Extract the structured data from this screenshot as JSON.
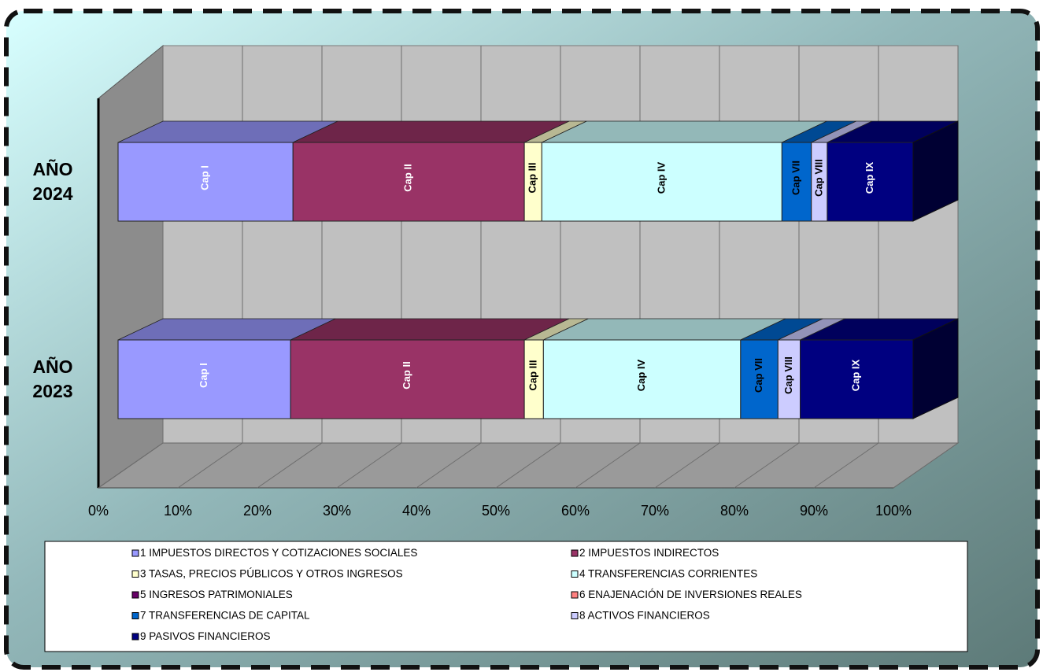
{
  "chart_data": {
    "type": "bar",
    "stacked": "percent",
    "orientation": "horizontal",
    "three_d": true,
    "categories": [
      "AÑO 2023",
      "AÑO 2024"
    ],
    "category_labels": [
      {
        "line1": "AÑO",
        "line2": "2023"
      },
      {
        "line1": "AÑO",
        "line2": "2024"
      }
    ],
    "series": [
      {
        "name": "1 IMPUESTOS DIRECTOS Y COTIZACIONES SOCIALES",
        "short": "Cap I",
        "color": "#9999FF",
        "label_color": "#ffffff",
        "values": [
          21.7,
          22.0
        ]
      },
      {
        "name": "2 IMPUESTOS INDIRECTOS",
        "short": "Cap II",
        "color": "#993366",
        "label_color": "#ffffff",
        "values": [
          29.4,
          29.1
        ]
      },
      {
        "name": "3 TASAS, PRECIOS PÚBLICOS Y OTROS INGRESOS",
        "short": "Cap III",
        "color": "#FFFFCC",
        "label_color": "#000000",
        "values": [
          2.4,
          2.2
        ]
      },
      {
        "name": "4 TRANSFERENCIAS CORRIENTES",
        "short": "Cap IV",
        "color": "#CCFFFF",
        "label_color": "#000000",
        "values": [
          24.8,
          30.2
        ]
      },
      {
        "name": "5 INGRESOS PATRIMONIALES",
        "short": "",
        "color": "#660066",
        "label_color": "#ffffff",
        "values": [
          0,
          0
        ]
      },
      {
        "name": "6 ENAJENACIÓN DE INVERSIONES REALES",
        "short": "",
        "color": "#FF8080",
        "label_color": "#000000",
        "values": [
          0,
          0
        ]
      },
      {
        "name": "7 TRANSFERENCIAS DE CAPITAL",
        "short": "Cap VII",
        "color": "#0066CC",
        "label_color": "#000000",
        "values": [
          4.7,
          3.7
        ]
      },
      {
        "name": "8 ACTIVOS FINANCIEROS",
        "short": "Cap VIII",
        "color": "#CCCCFF",
        "label_color": "#000000",
        "values": [
          2.8,
          2.0
        ]
      },
      {
        "name": "9 PASIVOS FINANCIEROS",
        "short": "Cap IX",
        "color": "#000080",
        "label_color": "#ffffff",
        "values": [
          14.2,
          10.8
        ]
      }
    ],
    "xlim": [
      0,
      100
    ],
    "xticks": [
      "0%",
      "10%",
      "20%",
      "30%",
      "40%",
      "50%",
      "60%",
      "70%",
      "80%",
      "90%",
      "100%"
    ],
    "grid": true,
    "legend_position": "bottom"
  }
}
